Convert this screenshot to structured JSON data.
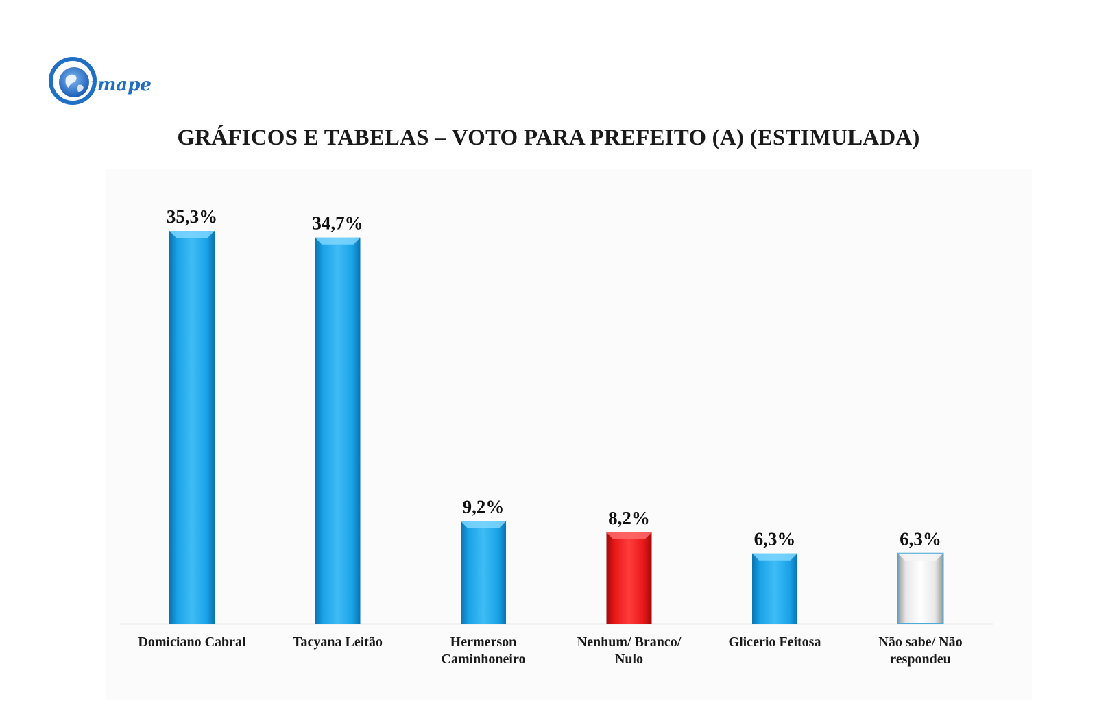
{
  "logo": {
    "text": "imape",
    "icon": "globe-icon",
    "color": "#1f6fc4"
  },
  "chart_data": {
    "type": "bar",
    "title": "GRÁFICOS E TABELAS – VOTO PARA PREFEITO (A) (ESTIMULADA)",
    "categories": [
      [
        "Domiciano Cabral"
      ],
      [
        "Tacyana Leitão"
      ],
      [
        "Hermerson",
        "Caminhoneiro"
      ],
      [
        "Nenhum/ Branco/",
        "Nulo"
      ],
      [
        "Glicerio Feitosa"
      ],
      [
        "Não sabe/ Não",
        "respondeu"
      ]
    ],
    "values": [
      35.3,
      34.7,
      9.2,
      8.2,
      6.3,
      6.3
    ],
    "value_labels": [
      "35,3%",
      "34,7%",
      "9,2%",
      "8,2%",
      "6,3%",
      "6,3%"
    ],
    "bar_colors": [
      "#1aa3e8",
      "#1aa3e8",
      "#1aa3e8",
      "#ee1c1c",
      "#1aa3e8",
      "#ffffff"
    ],
    "ylim": [
      0,
      35.3
    ],
    "xlabel": "",
    "ylabel": "",
    "grid": false,
    "legend": "none"
  }
}
